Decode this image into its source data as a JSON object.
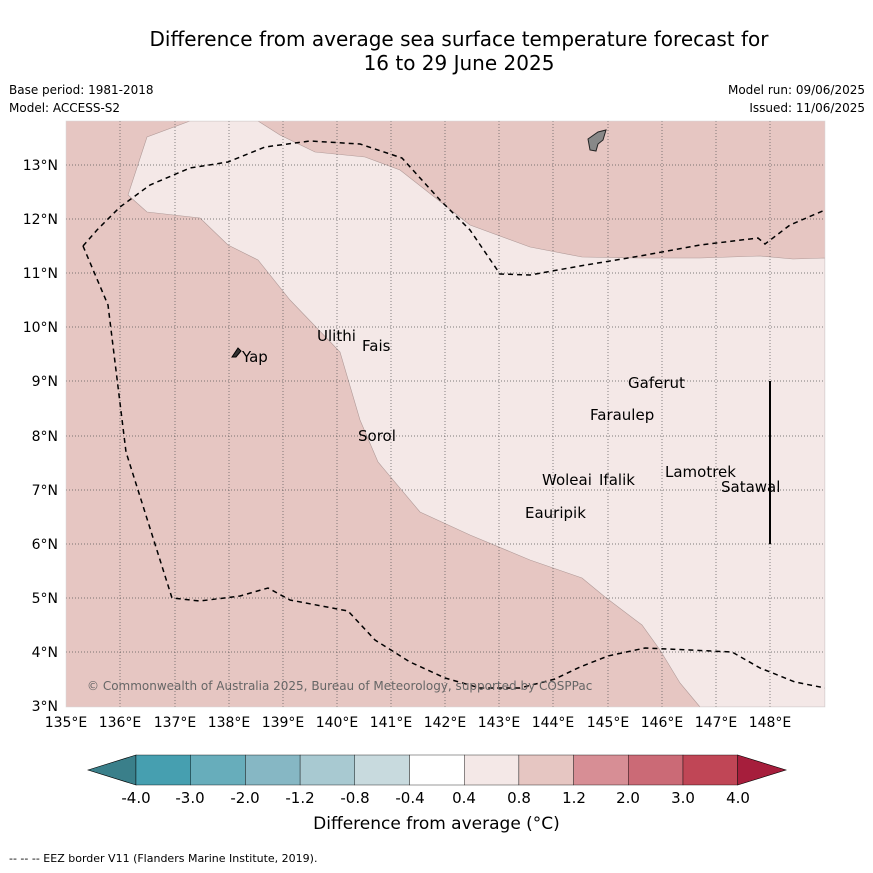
{
  "title_line1": "Difference from average sea surface temperature forecast for",
  "title_line2": "16 to 29 June 2025",
  "base_period": "Base period: 1981-2018",
  "model": "Model: ACCESS-S2",
  "model_run": "Model run: 09/06/2025",
  "issued": "Issued: 11/06/2025",
  "copyright": "© Commonwealth of Australia 2025, Bureau of Meteorology, supported by COSPPac",
  "lat_labels": [
    "13°N",
    "12°N",
    "11°N",
    "10°N",
    "9°N",
    "8°N",
    "7°N",
    "6°N",
    "5°N",
    "4°N",
    "3°N"
  ],
  "lon_labels": [
    "135°E",
    "136°E",
    "137°E",
    "138°E",
    "139°E",
    "140°E",
    "141°E",
    "142°E",
    "143°E",
    "144°E",
    "145°E",
    "146°E",
    "147°E",
    "148°E"
  ],
  "places": [
    "Yap",
    "Ulithi",
    "Fais",
    "Sorol",
    "Gaferut",
    "Faraulep",
    "Woleai",
    "Ifalik",
    "Eauripik",
    "Lamotrek",
    "Satawal"
  ],
  "colorbar": {
    "ticks": [
      "-4.0",
      "-3.0",
      "-2.0",
      "-1.2",
      "-0.8",
      "-0.4",
      "0.4",
      "0.8",
      "1.2",
      "2.0",
      "3.0",
      "4.0"
    ],
    "colors": [
      "#3a7f8a",
      "#469fb0",
      "#67adbb",
      "#86b7c4",
      "#a8c9d1",
      "#c8dade",
      "#ffffff",
      "#f4e8e7",
      "#e6c6c2",
      "#d78e95",
      "#cb6a76",
      "#c04656",
      "#a61e3c"
    ],
    "title": "Difference from average (°C)"
  },
  "map_colors": {
    "band_0.4_0.8": "#f4e8e7",
    "band_0.8_1.2": "#e6c6c2"
  },
  "footer": "--  --  -- EEZ border V11 (Flanders Marine Institute, 2019)."
}
